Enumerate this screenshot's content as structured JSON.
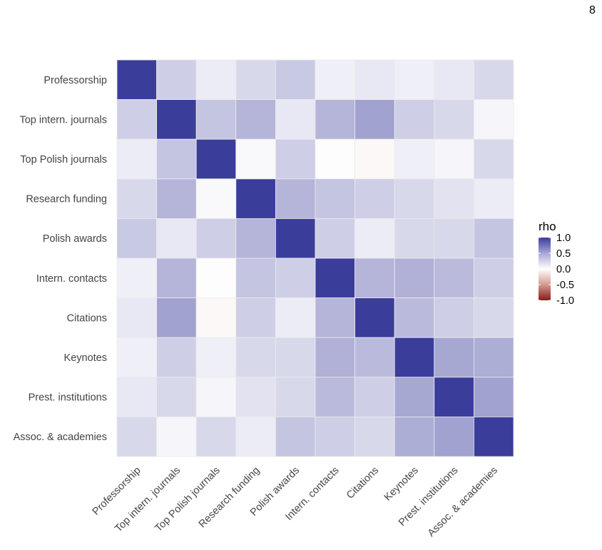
{
  "page": {
    "number": "8"
  },
  "chart_data": {
    "type": "heatmap",
    "labels": [
      "Professorship",
      "Top intern. journals",
      "Top Polish journals",
      "Research funding",
      "Polish awards",
      "Intern. contacts",
      "Citations",
      "Keynotes",
      "Prest. institutions",
      "Assoc. & academies"
    ],
    "values": [
      [
        1.0,
        0.25,
        0.1,
        0.2,
        0.28,
        0.08,
        0.12,
        0.08,
        0.12,
        0.2
      ],
      [
        0.25,
        1.0,
        0.3,
        0.38,
        0.12,
        0.38,
        0.48,
        0.25,
        0.2,
        0.05
      ],
      [
        0.1,
        0.3,
        1.0,
        0.03,
        0.25,
        -0.01,
        -0.03,
        0.08,
        0.05,
        0.2
      ],
      [
        0.2,
        0.38,
        0.03,
        1.0,
        0.38,
        0.3,
        0.25,
        0.2,
        0.15,
        0.1
      ],
      [
        0.28,
        0.12,
        0.25,
        0.38,
        1.0,
        0.25,
        0.1,
        0.2,
        0.2,
        0.3
      ],
      [
        0.08,
        0.38,
        -0.01,
        0.3,
        0.25,
        1.0,
        0.38,
        0.4,
        0.35,
        0.25
      ],
      [
        0.12,
        0.48,
        -0.03,
        0.25,
        0.1,
        0.38,
        1.0,
        0.35,
        0.25,
        0.2
      ],
      [
        0.08,
        0.25,
        0.08,
        0.2,
        0.2,
        0.4,
        0.35,
        1.0,
        0.45,
        0.42
      ],
      [
        0.12,
        0.2,
        0.05,
        0.15,
        0.2,
        0.35,
        0.25,
        0.45,
        1.0,
        0.48
      ],
      [
        0.2,
        0.05,
        0.2,
        0.1,
        0.3,
        0.25,
        0.2,
        0.42,
        0.48,
        1.0
      ]
    ],
    "legend": {
      "title": "rho",
      "ticks": [
        "1.0",
        "0.5",
        "0.0",
        "-0.5",
        "-1.0"
      ],
      "tick_values": [
        1.0,
        0.5,
        0.0,
        -0.5,
        -1.0
      ],
      "placement": "right"
    },
    "range": [
      -1.0,
      1.0
    ],
    "colors": {
      "high": "#3b3d9b",
      "mid": "#ffffff",
      "low": "#8b1a1a",
      "grid": "#ebebeb"
    }
  }
}
